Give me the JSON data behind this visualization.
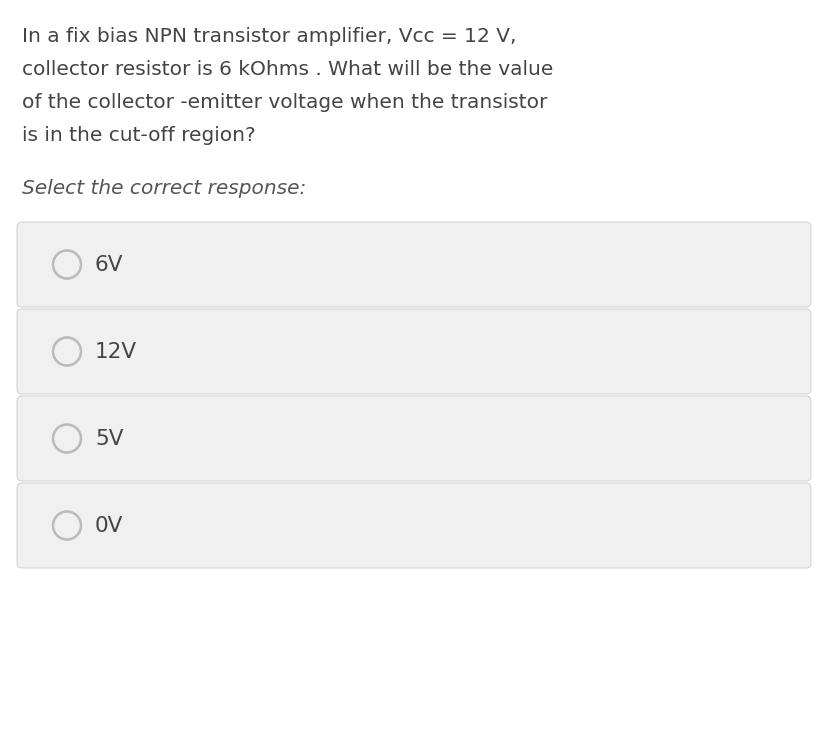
{
  "background_color": "#ffffff",
  "question_text_lines": [
    "In a fix bias NPN transistor amplifier, Vcc = 12 V,",
    "collector resistor is 6 kOhms . What will be the value",
    "of the collector -emitter voltage when the transistor",
    "is in the cut-off region?"
  ],
  "select_text": "Select the correct response:",
  "options": [
    "6V",
    "12V",
    "5V",
    "0V"
  ],
  "option_box_color": "#f0f0f0",
  "option_border_color": "#d0d0d0",
  "option_text_color": "#444444",
  "question_text_color": "#444444",
  "select_text_color": "#555555",
  "radio_color": "#bbbbbb",
  "question_fontsize": 14.5,
  "select_fontsize": 14.5,
  "option_fontsize": 15.5,
  "fig_width": 8.28,
  "fig_height": 7.37,
  "dpi": 100
}
